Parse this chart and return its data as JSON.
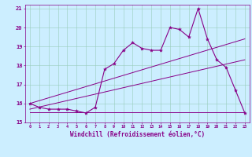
{
  "xlabel": "Windchill (Refroidissement éolien,°C)",
  "bg_color": "#cceeff",
  "line_color": "#880088",
  "xlim": [
    -0.5,
    23.5
  ],
  "ylim": [
    15,
    21.2
  ],
  "yticks": [
    15,
    16,
    17,
    18,
    19,
    20,
    21
  ],
  "xticks": [
    0,
    1,
    2,
    3,
    4,
    5,
    6,
    7,
    8,
    9,
    10,
    11,
    12,
    13,
    14,
    15,
    16,
    17,
    18,
    19,
    20,
    21,
    22,
    23
  ],
  "main_x": [
    0,
    1,
    2,
    3,
    4,
    5,
    6,
    7,
    8,
    9,
    10,
    11,
    12,
    13,
    14,
    15,
    16,
    17,
    18,
    19,
    20,
    21,
    22,
    23
  ],
  "main_y": [
    16.0,
    15.8,
    15.7,
    15.7,
    15.7,
    15.6,
    15.5,
    15.8,
    17.8,
    18.1,
    18.8,
    19.2,
    18.9,
    18.8,
    18.8,
    20.0,
    19.9,
    19.5,
    21.0,
    19.4,
    18.3,
    17.9,
    16.7,
    15.5
  ],
  "line1_x": [
    0,
    23
  ],
  "line1_y": [
    15.55,
    15.55
  ],
  "line2_x": [
    0,
    23
  ],
  "line2_y": [
    16.0,
    19.4
  ],
  "line3_x": [
    0,
    23
  ],
  "line3_y": [
    15.7,
    18.3
  ]
}
